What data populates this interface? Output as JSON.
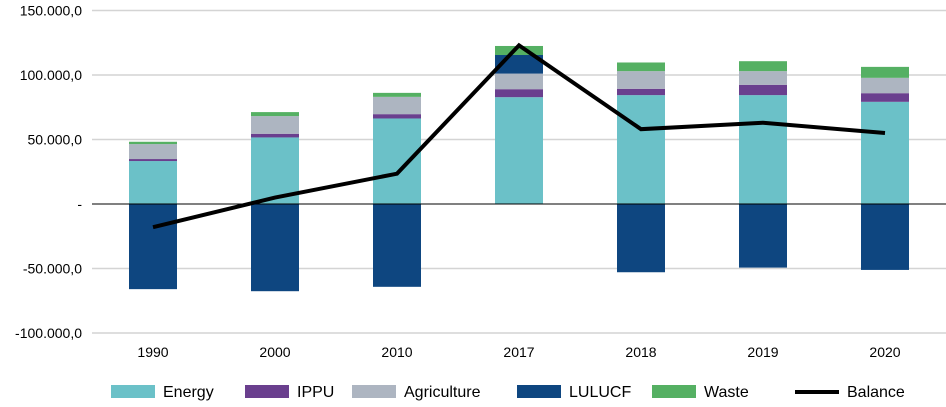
{
  "chart_data": {
    "type": "bar",
    "stacked": true,
    "title": "",
    "xlabel": "",
    "ylabel": "",
    "ylim": [
      -100000,
      150000
    ],
    "yticks": [
      {
        "value": 150000,
        "label": "150.000,0"
      },
      {
        "value": 100000,
        "label": "100.000,0"
      },
      {
        "value": 50000,
        "label": "50.000,0"
      },
      {
        "value": 0,
        "label": "-"
      },
      {
        "value": -50000,
        "label": "-50.000,0"
      },
      {
        "value": -100000,
        "label": "-100.000,0"
      }
    ],
    "grid": true,
    "legend_position": "bottom",
    "categories": [
      "1990",
      "2000",
      "2010",
      "2017",
      "2018",
      "2019",
      "2020"
    ],
    "series": [
      {
        "name": "Energy",
        "color": "#6BC1C8",
        "values": [
          33300,
          51600,
          66300,
          82800,
          84400,
          84400,
          79200
        ]
      },
      {
        "name": "IPPU",
        "color": "#6A3F8E",
        "values": [
          1550,
          2840,
          3350,
          6200,
          4900,
          8000,
          6700
        ]
      },
      {
        "name": "Agriculture",
        "color": "#ADB5C1",
        "values": [
          11600,
          13700,
          13400,
          12100,
          13700,
          10600,
          11900
        ]
      },
      {
        "name": "LULUCF",
        "color": "#0E4680",
        "values": [
          -66000,
          -67600,
          -64200,
          14400,
          -52900,
          -49300,
          -51100
        ]
      },
      {
        "name": "Waste",
        "color": "#55B063",
        "values": [
          1800,
          3100,
          3100,
          7000,
          6700,
          7700,
          8500
        ]
      }
    ],
    "line": {
      "name": "Balance",
      "color": "#000000",
      "values": [
        -18000,
        5000,
        23500,
        123000,
        58000,
        63000,
        55000
      ]
    }
  }
}
